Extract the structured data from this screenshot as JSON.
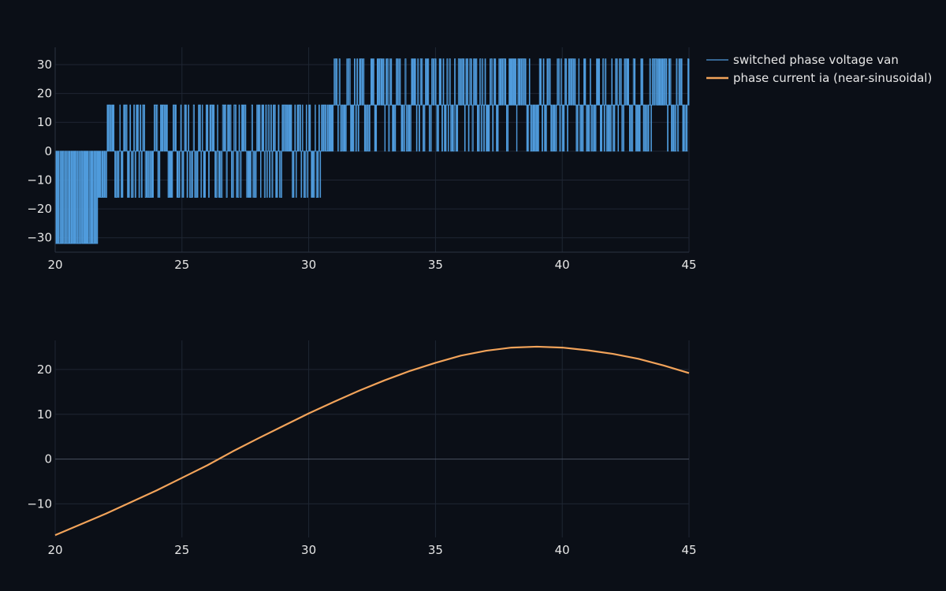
{
  "colors": {
    "background": "#0b0f17",
    "grid": "#1f2633",
    "axis_line": "#2b3342",
    "zero_line": "#4a5160",
    "voltage": "#4f9bdc",
    "current": "#f2a35a",
    "text": "#e6e6e6"
  },
  "chart_data": [
    {
      "type": "line",
      "name_ref": "voltage",
      "series": [
        {
          "name": "switched phase voltage van",
          "pwm_segments": [
            {
              "x_start": 20.0,
              "x_end": 21.7,
              "levels": [
                -32,
                0
              ]
            },
            {
              "x_start": 21.7,
              "x_end": 22.0,
              "levels": [
                -16,
                0
              ]
            },
            {
              "x_start": 22.0,
              "x_end": 30.5,
              "levels": [
                -16,
                0,
                16
              ]
            },
            {
              "x_start": 30.5,
              "x_end": 30.7,
              "levels": [
                0,
                16
              ]
            },
            {
              "x_start": 30.7,
              "x_end": 45.0,
              "levels": [
                0,
                16,
                32
              ]
            }
          ]
        }
      ],
      "xlim": [
        20,
        45
      ],
      "ylim": [
        -35,
        36
      ],
      "xticks": [
        20,
        25,
        30,
        35,
        40,
        45
      ],
      "yticks": [
        -30,
        -20,
        -10,
        0,
        10,
        20,
        30
      ],
      "xlabel": "",
      "ylabel": "",
      "grid": true
    },
    {
      "type": "line",
      "series": [
        {
          "name": "phase current ia (near-sinusoidal)",
          "x": [
            20,
            21,
            22,
            23,
            24,
            25,
            26,
            27,
            28,
            29,
            30,
            31,
            32,
            33,
            34,
            35,
            36,
            37,
            38,
            39,
            40,
            41,
            42,
            43,
            44,
            45
          ],
          "y": [
            -17.0,
            -14.6,
            -12.2,
            -9.6,
            -7.0,
            -4.2,
            -1.4,
            1.7,
            4.6,
            7.4,
            10.2,
            12.8,
            15.3,
            17.6,
            19.7,
            21.5,
            23.1,
            24.2,
            24.9,
            25.1,
            24.9,
            24.3,
            23.5,
            22.4,
            20.9,
            19.2
          ]
        }
      ],
      "xlim": [
        20,
        45
      ],
      "ylim": [
        -17.5,
        26.5
      ],
      "xticks": [
        20,
        25,
        30,
        35,
        40,
        45
      ],
      "yticks": [
        -10,
        0,
        10,
        20
      ],
      "xlabel": "",
      "ylabel": "",
      "grid": true
    }
  ],
  "legend": {
    "placement": "top-right",
    "items": [
      {
        "label": "switched phase voltage van",
        "color_key": "voltage"
      },
      {
        "label": "phase current ia (near-sinusoidal)",
        "color_key": "current"
      }
    ]
  }
}
